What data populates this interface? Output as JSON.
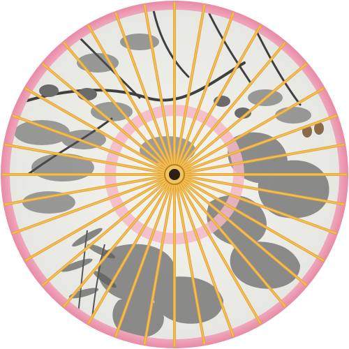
{
  "image": {
    "subject": "oil-paper-umbrella-top-view",
    "palette": {
      "background": "#ffffff",
      "rim_pink": "#f2a0b4",
      "rim_pink_dark": "#e88aa6",
      "paper": "#eeeeea",
      "ink": "#3a3a3a",
      "rib_gold": "#e7a83a",
      "rib_gold_light": "#f3c45e",
      "hub_dark": "#2a2016",
      "inner_ring_pink": "#f4b7c5"
    },
    "rib_count": 36,
    "motifs": [
      "pine-branches",
      "birds",
      "rocks",
      "bamboo",
      "pine-cones"
    ]
  }
}
